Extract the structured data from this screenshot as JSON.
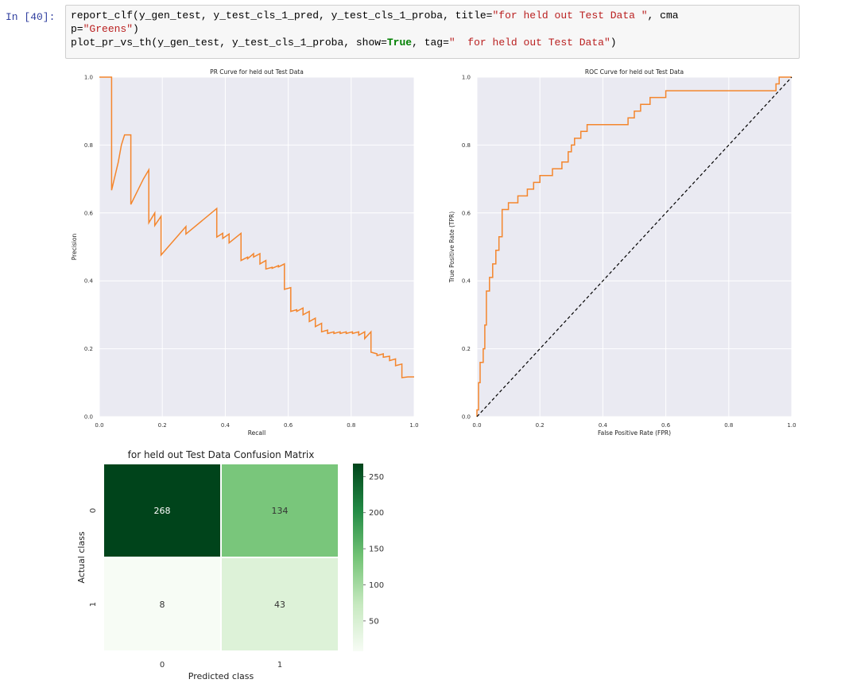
{
  "prompt": "In [40]:",
  "code": {
    "l1_pre": "report_clf(y_gen_test, y_test_cls_1_pred, y_test_cls_1_proba, title=",
    "l1_str": "\"for held out Test Data \"",
    "l1_post": ", cma",
    "l2_pre": "p=",
    "l2_str": "\"Greens\"",
    "l2_post": ")",
    "l3_pre": "plot_pr_vs_th(y_gen_test, y_test_cls_1_proba, show=",
    "l3_kw": "True",
    "l3_mid": ", tag=",
    "l3_str": "\"  for held out Test Data\"",
    "l3_post": ")"
  },
  "colors": {
    "curve": "#f4862d",
    "diagonal": "#000000",
    "panel": "#eaeaf2"
  },
  "chart_data": [
    {
      "type": "line",
      "title": "PR Curve for held out Test Data",
      "xlabel": "Recall",
      "ylabel": "Precision",
      "xlim": [
        0,
        1
      ],
      "ylim": [
        0,
        1
      ],
      "grid": true,
      "xticks": [
        "0.0",
        "0.2",
        "0.4",
        "0.6",
        "0.8",
        "1.0"
      ],
      "yticks": [
        "0.0",
        "0.2",
        "0.4",
        "0.6",
        "0.8",
        "1.0"
      ],
      "series": [
        {
          "x": [
            0,
            0.039,
            0.039,
            0.06,
            0.07,
            0.08,
            0.1,
            0.1,
            0.14,
            0.157,
            0.157,
            0.176,
            0.176,
            0.196,
            0.196,
            0.275,
            0.275,
            0.373,
            0.373,
            0.392,
            0.392,
            0.412,
            0.412,
            0.45,
            0.45,
            0.471,
            0.471,
            0.49,
            0.49,
            0.51,
            0.51,
            0.529,
            0.529,
            0.549,
            0.549,
            0.569,
            0.569,
            0.588,
            0.588,
            0.608,
            0.608,
            0.627,
            0.627,
            0.647,
            0.647,
            0.667,
            0.667,
            0.686,
            0.686,
            0.706,
            0.706,
            0.725,
            0.725,
            0.745,
            0.745,
            0.765,
            0.765,
            0.784,
            0.784,
            0.804,
            0.804,
            0.824,
            0.824,
            0.843,
            0.843,
            0.863,
            0.863,
            0.882,
            0.882,
            0.902,
            0.902,
            0.922,
            0.922,
            0.941,
            0.941,
            0.961,
            0.961,
            0.98,
            1.0
          ],
          "y": [
            1.0,
            1.0,
            0.667,
            0.75,
            0.8,
            0.83,
            0.83,
            0.625,
            0.7,
            0.727,
            0.571,
            0.6,
            0.563,
            0.59,
            0.476,
            0.56,
            0.538,
            0.613,
            0.529,
            0.54,
            0.525,
            0.538,
            0.512,
            0.54,
            0.46,
            0.47,
            0.465,
            0.48,
            0.47,
            0.48,
            0.45,
            0.46,
            0.435,
            0.44,
            0.437,
            0.445,
            0.441,
            0.45,
            0.375,
            0.38,
            0.31,
            0.315,
            0.31,
            0.32,
            0.3,
            0.31,
            0.28,
            0.29,
            0.265,
            0.275,
            0.25,
            0.255,
            0.245,
            0.25,
            0.245,
            0.25,
            0.245,
            0.25,
            0.245,
            0.25,
            0.245,
            0.25,
            0.24,
            0.25,
            0.23,
            0.25,
            0.19,
            0.185,
            0.18,
            0.185,
            0.175,
            0.178,
            0.165,
            0.17,
            0.15,
            0.155,
            0.115,
            0.117,
            0.117
          ]
        }
      ]
    },
    {
      "type": "line",
      "title": "ROC Curve for held out Test Data",
      "xlabel": "False Positive Rate (FPR)",
      "ylabel": "True Positive Rate (TPR)",
      "xlim": [
        0,
        1
      ],
      "ylim": [
        0,
        1
      ],
      "grid": true,
      "xticks": [
        "0.0",
        "0.2",
        "0.4",
        "0.6",
        "0.8",
        "1.0"
      ],
      "yticks": [
        "0.0",
        "0.2",
        "0.4",
        "0.6",
        "0.8",
        "1.0"
      ],
      "series": [
        {
          "x": [
            0,
            0,
            0.005,
            0.005,
            0.01,
            0.01,
            0.02,
            0.02,
            0.025,
            0.025,
            0.03,
            0.03,
            0.04,
            0.04,
            0.05,
            0.05,
            0.06,
            0.06,
            0.07,
            0.07,
            0.08,
            0.08,
            0.1,
            0.1,
            0.13,
            0.13,
            0.16,
            0.16,
            0.18,
            0.18,
            0.2,
            0.2,
            0.24,
            0.24,
            0.27,
            0.27,
            0.29,
            0.29,
            0.3,
            0.3,
            0.31,
            0.31,
            0.33,
            0.33,
            0.35,
            0.35,
            0.48,
            0.48,
            0.5,
            0.5,
            0.52,
            0.52,
            0.55,
            0.55,
            0.6,
            0.6,
            0.7,
            0.7,
            0.95,
            0.95,
            0.96,
            0.96,
            1.0
          ],
          "y": [
            0,
            0.02,
            0.02,
            0.1,
            0.1,
            0.16,
            0.16,
            0.2,
            0.2,
            0.27,
            0.27,
            0.37,
            0.37,
            0.41,
            0.41,
            0.45,
            0.45,
            0.49,
            0.49,
            0.53,
            0.53,
            0.61,
            0.61,
            0.63,
            0.63,
            0.65,
            0.65,
            0.67,
            0.67,
            0.69,
            0.69,
            0.71,
            0.71,
            0.73,
            0.73,
            0.75,
            0.75,
            0.78,
            0.78,
            0.8,
            0.8,
            0.82,
            0.82,
            0.84,
            0.84,
            0.86,
            0.86,
            0.88,
            0.88,
            0.9,
            0.9,
            0.92,
            0.92,
            0.94,
            0.94,
            0.96,
            0.96,
            0.96,
            0.96,
            0.98,
            0.98,
            1.0,
            1.0
          ]
        },
        {
          "x": [
            0,
            1
          ],
          "y": [
            0,
            1
          ]
        }
      ]
    },
    {
      "type": "heatmap",
      "title": "for held out Test Data  Confusion Matrix",
      "xlabel": "Predicted class",
      "ylabel": "Actual class",
      "x": [
        "0",
        "1"
      ],
      "y": [
        "0",
        "1"
      ],
      "values": [
        [
          268,
          134
        ],
        [
          8,
          43
        ]
      ],
      "colorbar_ticks": [
        "250",
        "200",
        "150",
        "100",
        "50"
      ],
      "vmin": 8,
      "vmax": 268,
      "colormap": "Greens"
    }
  ]
}
